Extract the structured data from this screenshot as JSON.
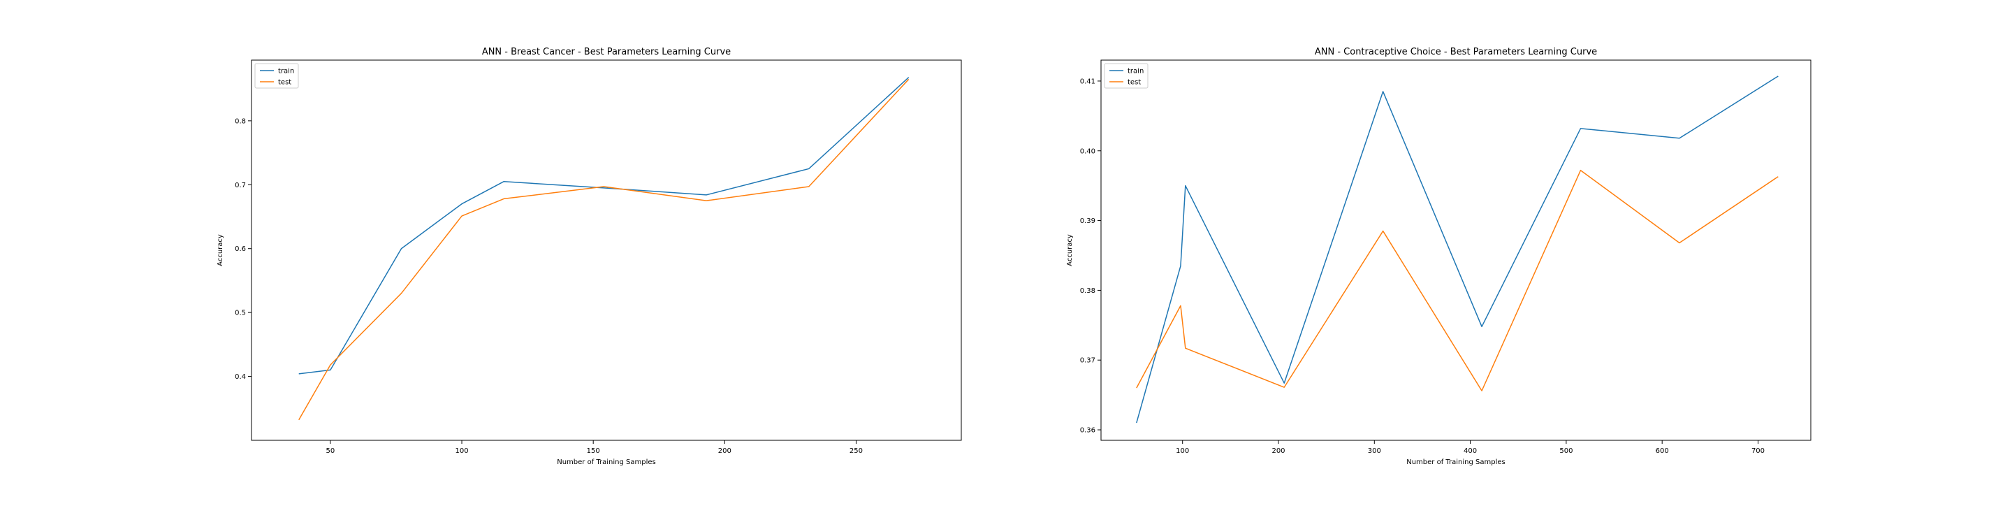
{
  "chart_data": [
    {
      "type": "line",
      "title": "ANN - Breast Cancer -  Best Parameters Learning Curve",
      "xlabel": "Number of Training Samples",
      "ylabel": "Accuracy",
      "xlim": [
        20,
        290
      ],
      "ylim": [
        0.3,
        0.895
      ],
      "xticks": [
        50,
        100,
        150,
        200,
        250
      ],
      "yticks": [
        0.4,
        0.5,
        0.6,
        0.7,
        0.8
      ],
      "yticklabels": [
        "0.4",
        "0.5",
        "0.6",
        "0.7",
        "0.8"
      ],
      "legend_position": "upper-left",
      "grid": false,
      "x": [
        38,
        50,
        77,
        100,
        116,
        154,
        193,
        232,
        270
      ],
      "series": [
        {
          "name": "train",
          "color": "#1f77b4",
          "values": [
            0.404,
            0.41,
            0.6,
            0.67,
            0.705,
            0.695,
            0.684,
            0.725,
            0.868
          ]
        },
        {
          "name": "test",
          "color": "#ff7f0e",
          "values": [
            0.332,
            0.418,
            0.53,
            0.651,
            0.678,
            0.697,
            0.675,
            0.697,
            0.865
          ]
        }
      ]
    },
    {
      "type": "line",
      "title": "ANN - Contraceptive Choice -  Best Parameters Learning Curve",
      "xlabel": "Number of Training Samples",
      "ylabel": "Accuracy",
      "xlim": [
        15,
        755
      ],
      "ylim": [
        0.3585,
        0.413
      ],
      "xticks": [
        100,
        200,
        300,
        400,
        500,
        600,
        700
      ],
      "yticks": [
        0.36,
        0.37,
        0.38,
        0.39,
        0.4,
        0.41
      ],
      "yticklabels": [
        "0.36",
        "0.37",
        "0.38",
        "0.39",
        "0.40",
        "0.41"
      ],
      "legend_position": "upper-left",
      "grid": false,
      "x": [
        52,
        98,
        103,
        206,
        309,
        412,
        515,
        618,
        721
      ],
      "series": [
        {
          "name": "train",
          "color": "#1f77b4",
          "values": [
            0.361,
            0.3835,
            0.395,
            0.3667,
            0.4085,
            0.3748,
            0.4032,
            0.4018,
            0.4107
          ]
        },
        {
          "name": "test",
          "color": "#ff7f0e",
          "values": [
            0.366,
            0.3778,
            0.3717,
            0.3661,
            0.3885,
            0.3656,
            0.3972,
            0.3868,
            0.3963
          ]
        }
      ]
    }
  ]
}
